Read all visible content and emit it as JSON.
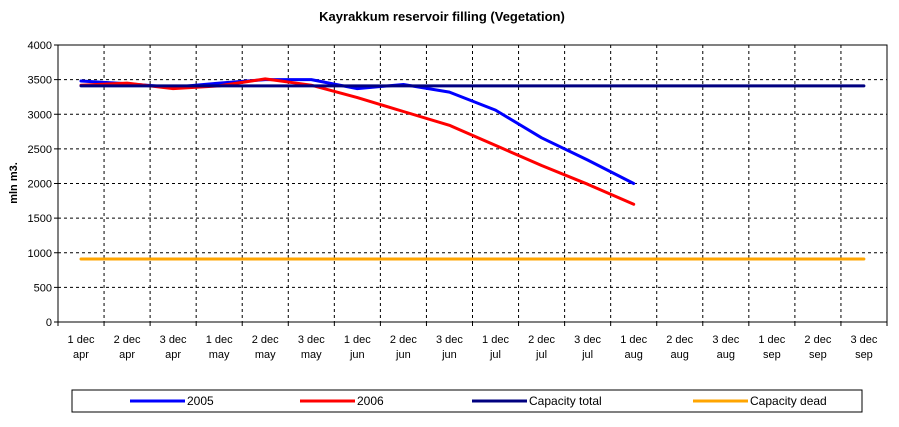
{
  "chart_data": {
    "type": "line",
    "title": "Kayrakkum reservoir filling  (Vegetation)",
    "xlabel": "",
    "ylabel": "mln m3.",
    "ylim": [
      0,
      4000
    ],
    "yticks": [
      0,
      500,
      1000,
      1500,
      2000,
      2500,
      3000,
      3500,
      4000
    ],
    "grid": true,
    "legend_position": "bottom",
    "categories": [
      [
        "1 dec",
        "apr"
      ],
      [
        "2 dec",
        "apr"
      ],
      [
        "3 dec",
        "apr"
      ],
      [
        "1 dec",
        "may"
      ],
      [
        "2 dec",
        "may"
      ],
      [
        "3 dec",
        "may"
      ],
      [
        "1 dec",
        "jun"
      ],
      [
        "2 dec",
        "jun"
      ],
      [
        "3 dec",
        "jun"
      ],
      [
        "1 dec",
        "jul"
      ],
      [
        "2 dec",
        "jul"
      ],
      [
        "3 dec",
        "jul"
      ],
      [
        "1 dec",
        "aug"
      ],
      [
        "2 dec",
        "aug"
      ],
      [
        "3 dec",
        "aug"
      ],
      [
        "1 dec",
        "sep"
      ],
      [
        "2 dec",
        "sep"
      ],
      [
        "3 dec",
        "sep"
      ]
    ],
    "series": [
      {
        "name": "2005",
        "color": "#0000ff",
        "values": [
          3480,
          3440,
          3390,
          3450,
          3500,
          3500,
          3370,
          3430,
          3320,
          3060,
          2660,
          2340,
          2000,
          null,
          null,
          null,
          null,
          null
        ]
      },
      {
        "name": "2006",
        "color": "#ff0000",
        "values": [
          3420,
          3450,
          3370,
          3410,
          3510,
          3420,
          3240,
          3040,
          2840,
          2550,
          2260,
          1990,
          1700,
          null,
          null,
          null,
          null,
          null
        ]
      },
      {
        "name": "Capacity total",
        "color": "#000080",
        "values": [
          3410,
          3410,
          3410,
          3410,
          3410,
          3410,
          3410,
          3410,
          3410,
          3410,
          3410,
          3410,
          3410,
          3410,
          3410,
          3410,
          3410,
          3410
        ]
      },
      {
        "name": "Capacity dead",
        "color": "#ffa500",
        "values": [
          910,
          910,
          910,
          910,
          910,
          910,
          910,
          910,
          910,
          910,
          910,
          910,
          910,
          910,
          910,
          910,
          910,
          910
        ]
      }
    ]
  }
}
